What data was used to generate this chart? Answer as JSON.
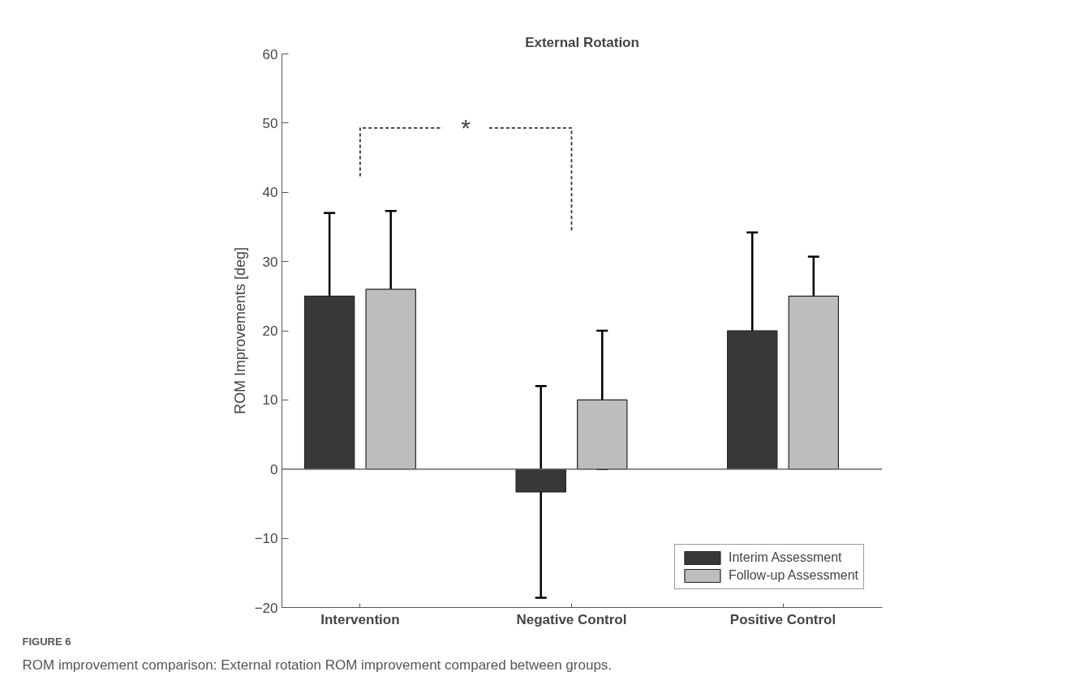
{
  "chart_data": {
    "type": "bar",
    "title": "External Rotation",
    "ylabel": "ROM Improvements [deg]",
    "categories": [
      "Intervention",
      "Negative Control",
      "Positive Control"
    ],
    "series": [
      {
        "name": "Interim Assessment",
        "color": "#383838",
        "values": [
          25,
          -3.3,
          20
        ],
        "errors": [
          12,
          15.3,
          14.2
        ]
      },
      {
        "name": "Follow-up Assessment",
        "color": "#bdbdbd",
        "values": [
          26,
          10,
          25
        ],
        "errors": [
          11.3,
          10,
          5.7
        ]
      }
    ],
    "ylim": [
      -20,
      60
    ],
    "yticks": [
      -20,
      -10,
      0,
      10,
      20,
      30,
      40,
      50,
      60
    ],
    "ref_lines": [
      {
        "axis": "y",
        "value": 0
      }
    ],
    "grid": false,
    "legend": "bottom right",
    "annotations": [
      "*",
      "FIGURE 6",
      "ROM improvement comparison: External rotation ROM improvement compared between groups."
    ]
  }
}
